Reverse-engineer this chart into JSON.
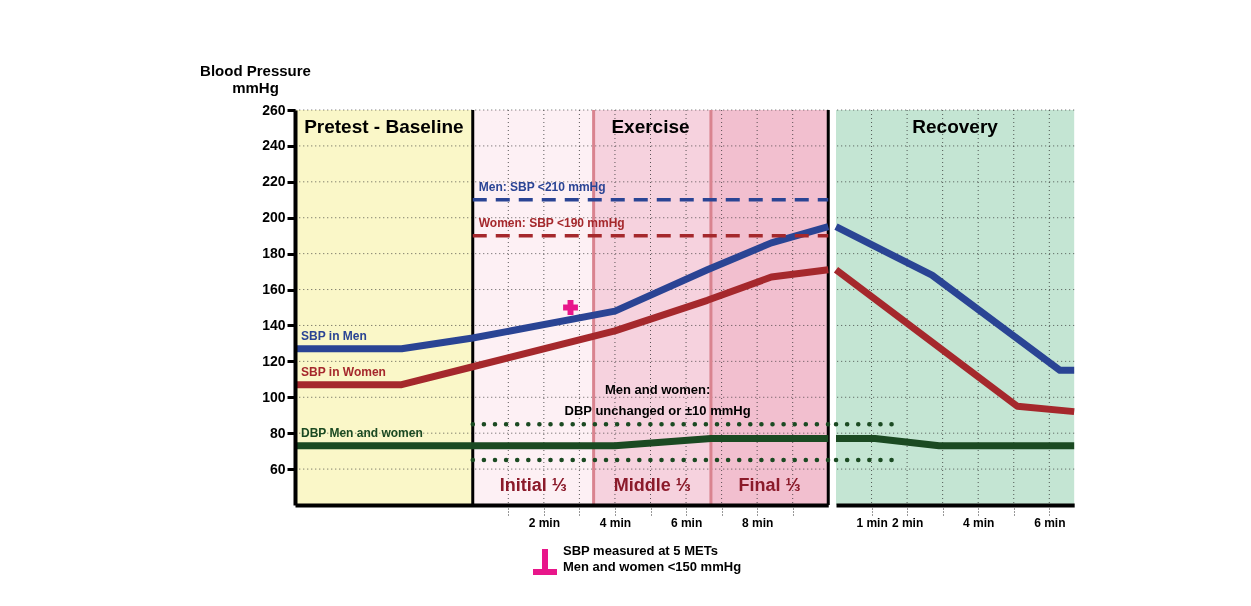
{
  "chart_data": [
    {
      "type": "line",
      "ylabel": "Blood Pressure\nmmHg",
      "xlim": [
        -5,
        10
      ],
      "xticks": [
        {
          "value": 1,
          "label": null
        },
        {
          "value": 2,
          "label": "2 min"
        },
        {
          "value": 3,
          "label": null
        },
        {
          "value": 4,
          "label": "4 min"
        },
        {
          "value": 5,
          "label": null
        },
        {
          "value": 6,
          "label": "6 min"
        },
        {
          "value": 7,
          "label": null
        },
        {
          "value": 8,
          "label": "8 min"
        },
        {
          "value": 9,
          "label": null
        }
      ],
      "ylim": [
        40,
        260
      ],
      "yticks": [
        60,
        80,
        100,
        120,
        140,
        160,
        180,
        200,
        220,
        240,
        260
      ],
      "grid": true,
      "series": [
        {
          "name": "SBP in Men",
          "color": "#2a4494",
          "line_style": "solid",
          "x": [
            -5,
            -2,
            0,
            4,
            6.6,
            8.4,
            10
          ],
          "values": [
            127,
            127,
            133,
            148,
            171,
            186,
            195
          ]
        },
        {
          "name": "SBP in Women",
          "color": "#a5282c",
          "line_style": "solid",
          "x": [
            -5,
            -2,
            0,
            4,
            6.6,
            8.4,
            10
          ],
          "values": [
            107,
            107,
            117,
            137,
            154,
            167,
            171
          ]
        },
        {
          "name": "DBP Men and women",
          "color": "#1b4a22",
          "line_style": "solid",
          "x": [
            -5,
            4,
            6.7,
            10
          ],
          "values": [
            73,
            73,
            77,
            77
          ]
        },
        {
          "name": "Men: SBP <210 mmHg",
          "color": "#2a4494",
          "line_style": "dashed",
          "x": [
            0,
            10
          ],
          "values": [
            210,
            210
          ]
        },
        {
          "name": "Women: SBP <190 mmHg",
          "color": "#a5282c",
          "line_style": "dashed",
          "x": [
            0,
            10
          ],
          "values": [
            190,
            190
          ]
        },
        {
          "color": "#1b4a22",
          "line_style": "dotted",
          "x": [
            0,
            10
          ],
          "values": [
            85,
            85
          ]
        },
        {
          "color": "#1b4a22",
          "line_style": "dotted",
          "x": [
            0,
            10
          ],
          "values": [
            65,
            65
          ]
        },
        {
          "type": "scatter",
          "marker": "cross",
          "color": "#e8168a",
          "x": [
            2.75
          ],
          "values": [
            150
          ]
        }
      ],
      "bands": [
        {
          "axis": "x",
          "from": -5,
          "to": 0,
          "label": "Pretest - Baseline",
          "color": "#faf7c8"
        },
        {
          "axis": "x",
          "from": 0,
          "to": 10,
          "label": "Exercise",
          "color": "#f9e4eb"
        },
        {
          "axis": "x",
          "from": 0,
          "to": 3.4,
          "label": "Initial ⅓",
          "color": "#fdf4f7"
        },
        {
          "axis": "x",
          "from": 3.4,
          "to": 6.7,
          "label": "Middle ⅓",
          "color": "#f4ccd9"
        },
        {
          "axis": "x",
          "from": 6.7,
          "to": 10,
          "label": "Final ⅓",
          "color": "#efb3c6"
        }
      ],
      "ref_lines": [
        {
          "axis": "x",
          "value": 0,
          "color": "#000000"
        },
        {
          "axis": "x",
          "value": 3.4,
          "color": "#d9838f"
        },
        {
          "axis": "x",
          "value": 6.7,
          "color": "#d9838f"
        },
        {
          "axis": "x",
          "value": 10,
          "color": "#000000"
        }
      ],
      "annotations": [
        "Men and women:\nDBP unchanged or ±10 mmHg",
        "SBP measured at 5 METs\nMen and women <150 mmHg"
      ]
    },
    {
      "type": "line",
      "xlim": [
        0,
        6.7
      ],
      "xticks": [
        {
          "value": 1,
          "label": "1 min"
        },
        {
          "value": 2,
          "label": "2 min"
        },
        {
          "value": 3,
          "label": null
        },
        {
          "value": 4,
          "label": "4 min"
        },
        {
          "value": 5,
          "label": null
        },
        {
          "value": 6,
          "label": "6 min"
        }
      ],
      "ylim": [
        40,
        260
      ],
      "yticks": [
        60,
        80,
        100,
        120,
        140,
        160,
        180,
        200,
        220,
        240,
        260
      ],
      "tick_labels": "x",
      "grid": true,
      "series": [
        {
          "color": "#2a4494",
          "line_style": "solid",
          "x": [
            0,
            2.7,
            6.3,
            6.7
          ],
          "values": [
            195,
            168,
            115,
            115
          ]
        },
        {
          "color": "#a5282c",
          "line_style": "solid",
          "x": [
            0,
            5.1,
            6.7
          ],
          "values": [
            171,
            95,
            92
          ]
        },
        {
          "color": "#1b4a22",
          "line_style": "solid",
          "x": [
            0,
            1.1,
            2.9,
            6.7
          ],
          "values": [
            77,
            77,
            73,
            73
          ]
        },
        {
          "color": "#1b4a22",
          "line_style": "dotted",
          "x": [
            0,
            1.6
          ],
          "values": [
            85,
            85
          ]
        },
        {
          "color": "#1b4a22",
          "line_style": "dotted",
          "x": [
            0,
            1.6
          ],
          "values": [
            65,
            65
          ]
        }
      ],
      "bands": [
        {
          "axis": "x",
          "from": 0,
          "to": 6.7,
          "label": "Recovery",
          "color": "#c4e5d3"
        }
      ]
    }
  ]
}
